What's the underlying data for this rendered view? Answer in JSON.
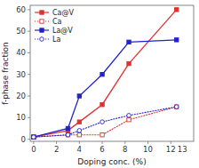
{
  "chart_data": {
    "type": "line",
    "x": [
      0,
      3,
      4,
      6,
      8.33,
      12.5
    ],
    "series": [
      {
        "name": "Ca@V",
        "color": "#e03030",
        "line_style": "solid",
        "marker": "square",
        "values": [
          1,
          4,
          8,
          16,
          35,
          60
        ]
      },
      {
        "name": "Ca",
        "color": "#e03030",
        "line_style": "dotted",
        "marker": "open-square",
        "values": [
          1,
          2,
          2,
          2,
          9,
          15
        ]
      },
      {
        "name": "La@V",
        "color": "#2222cc",
        "line_style": "solid",
        "marker": "square",
        "values": [
          1,
          5,
          20,
          30,
          45,
          46
        ]
      },
      {
        "name": "La",
        "color": "#2222cc",
        "line_style": "dotted",
        "marker": "open-circle",
        "values": [
          1,
          2,
          4,
          8,
          11,
          15
        ]
      }
    ],
    "xlim": [
      -0.3,
      14
    ],
    "ylim": [
      -1,
      62
    ],
    "xticks": [
      0,
      2,
      4,
      6,
      8,
      10,
      12
    ],
    "yticks": [
      0,
      10,
      20,
      30,
      40,
      50,
      60
    ],
    "xlabel": "Doping conc. (%)",
    "ylabel": "f-phase fraction",
    "annotations": [
      {
        "text": "13",
        "x": 13
      }
    ],
    "legend": "upper-left",
    "grid": false
  }
}
